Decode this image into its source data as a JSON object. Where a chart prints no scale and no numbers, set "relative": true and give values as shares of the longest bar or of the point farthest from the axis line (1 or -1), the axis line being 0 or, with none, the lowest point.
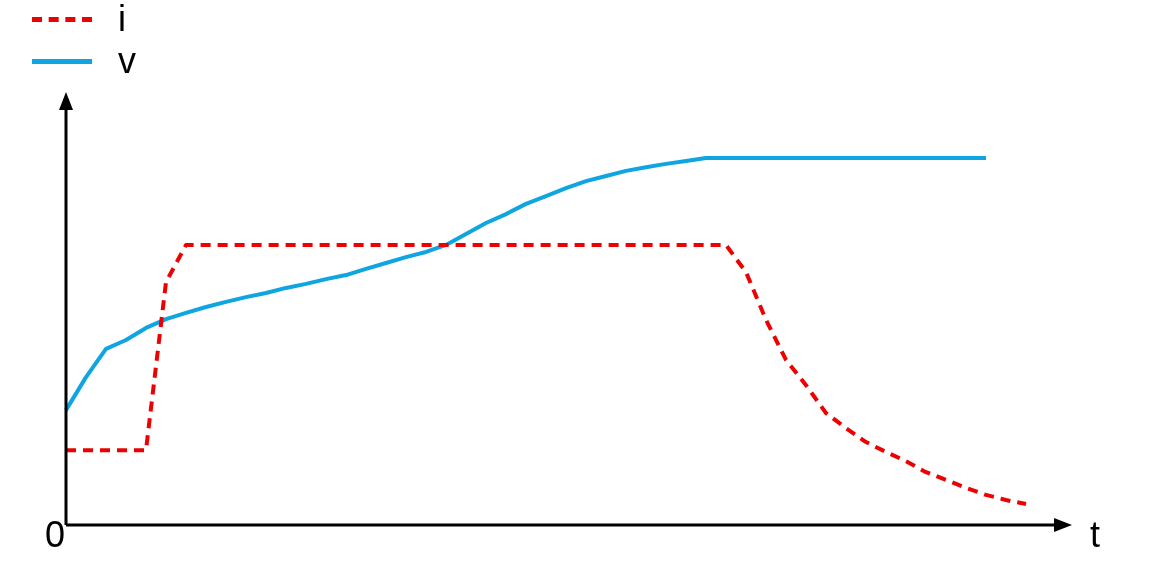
{
  "chart_data": {
    "type": "line",
    "xlabel": "t",
    "relative": true,
    "legend": "top left",
    "marker": "none",
    "annotations": [
      "0"
    ],
    "categories": [
      null,
      null,
      null,
      null,
      null,
      null,
      null,
      null,
      null,
      null,
      null,
      null,
      null,
      null,
      null,
      null,
      null,
      null,
      null,
      null,
      null,
      null,
      null,
      null,
      null,
      null,
      null,
      null,
      null,
      null,
      null,
      null,
      null,
      null,
      null,
      null,
      null,
      null,
      null,
      null,
      null,
      null,
      null,
      null,
      null,
      null,
      null,
      null,
      null,
      null
    ],
    "series": [
      {
        "name": "i",
        "color": "#ee0000",
        "line_style": "dashed",
        "values": [
          0.204,
          0.204,
          0.204,
          0.204,
          0.204,
          0.662,
          0.763,
          0.763,
          0.763,
          0.763,
          0.763,
          0.763,
          0.763,
          0.763,
          0.763,
          0.763,
          0.763,
          0.763,
          0.763,
          0.763,
          0.763,
          0.763,
          0.763,
          0.763,
          0.763,
          0.763,
          0.763,
          0.763,
          0.763,
          0.763,
          0.763,
          0.763,
          0.763,
          0.763,
          0.689,
          0.559,
          0.45,
          0.381,
          0.305,
          0.264,
          0.226,
          0.199,
          0.174,
          0.144,
          0.123,
          0.101,
          0.082,
          0.068,
          0.057,
          null
        ]
      },
      {
        "name": "v",
        "color": "#0ea5e0",
        "line_style": "solid",
        "values": [
          0.313,
          0.403,
          0.48,
          0.504,
          0.537,
          0.561,
          0.578,
          0.594,
          0.608,
          0.621,
          0.632,
          0.646,
          0.657,
          0.67,
          0.681,
          0.698,
          0.714,
          0.73,
          0.744,
          0.763,
          0.793,
          0.823,
          0.847,
          0.875,
          0.896,
          0.918,
          0.937,
          0.951,
          0.965,
          0.975,
          0.984,
          0.992,
          1,
          1,
          1,
          1,
          1,
          1,
          1,
          1,
          1,
          1,
          1,
          1,
          1,
          1,
          1,
          null,
          null,
          null
        ]
      }
    ]
  }
}
